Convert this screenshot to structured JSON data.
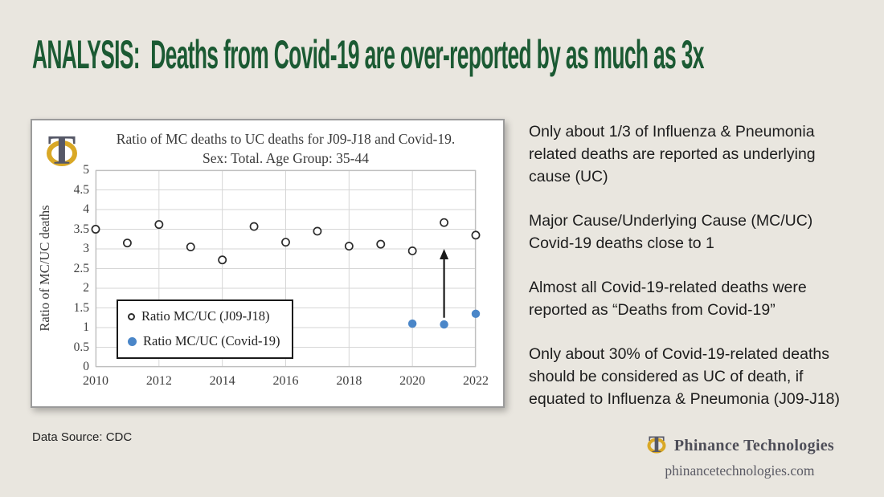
{
  "slide": {
    "title": "ANALYSIS:  Deaths from Covid-19 are over-reported by as much as 3x",
    "background_color": "#e9e6df",
    "title_color": "#1b5a33"
  },
  "chart_data": {
    "type": "scatter",
    "title": "Ratio of MC deaths to UC deaths for J09-J18 and Covid-19.\nSex: Total. Age Group: 35-44",
    "xlabel": "",
    "ylabel": "Ratio of MC/UC deaths",
    "xlim": [
      2010,
      2022
    ],
    "ylim": [
      0,
      5
    ],
    "x_ticks": [
      2010,
      2012,
      2014,
      2016,
      2018,
      2020,
      2022
    ],
    "y_ticks": [
      0,
      0.5,
      1,
      1.5,
      2,
      2.5,
      3,
      3.5,
      4,
      4.5,
      5
    ],
    "grid": true,
    "legend_position": "inside-bottom-left",
    "series": [
      {
        "name": "Ratio MC/UC (J09-J18)",
        "marker": "open-circle",
        "color": "#2b2b2b",
        "x": [
          2010,
          2011,
          2012,
          2013,
          2014,
          2015,
          2016,
          2017,
          2018,
          2019,
          2020,
          2021,
          2022
        ],
        "y": [
          3.5,
          3.15,
          3.62,
          3.05,
          2.72,
          3.57,
          3.17,
          3.45,
          3.07,
          3.12,
          2.95,
          3.67,
          3.35
        ]
      },
      {
        "name": "Ratio MC/UC (Covid-19)",
        "marker": "filled-circle",
        "color": "#4a86c8",
        "x": [
          2020,
          2021,
          2022
        ],
        "y": [
          1.1,
          1.08,
          1.35
        ]
      }
    ],
    "annotation_arrow": {
      "x": 2021,
      "y_from": 1.25,
      "y_to": 3.0,
      "color": "#1a1a1a"
    }
  },
  "insights": {
    "paragraphs": [
      "Only about 1/3 of Influenza & Pneumonia\nrelated deaths are reported as underlying\ncause (UC)",
      "Major Cause/Underlying Cause (MC/UC)\nCovid-19 deaths close to 1",
      "Almost all Covid-19-related deaths were\nreported as “Deaths from Covid-19”",
      "Only about 30% of Covid-19-related deaths\nshould be considered as UC of death, if\nequated to Influenza & Pneumonia (J09-J18)"
    ]
  },
  "footer": {
    "data_source": "Data Source: CDC",
    "brand_name": "Phinance Technologies",
    "brand_url": "phinancetechnologies.com"
  },
  "style": {
    "grid_color": "#d6d6d6",
    "axis_color": "#bfbfbf",
    "logo_gold": "#d9a826",
    "logo_slate": "#565867"
  }
}
